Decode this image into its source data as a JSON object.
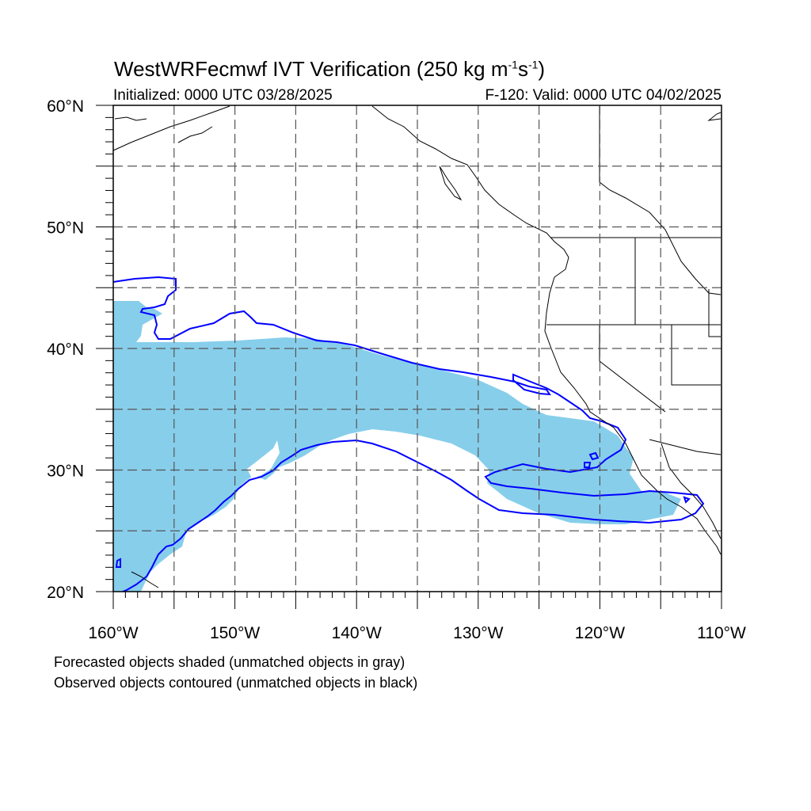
{
  "title": {
    "model": "WestWRFecmwf",
    "rest": " IVT Verification (250 kg m",
    "exp1": "-1",
    "mid": "s",
    "exp2": "-1",
    "close": ")"
  },
  "initialized": "Initialized: 0000 UTC 03/28/2025",
  "valid": "F-120: Valid: 0000 UTC 04/02/2025",
  "notes": [
    "Forecasted objects shaded (unmatched objects in gray)",
    "Observed objects contoured (unmatched objects in black)"
  ],
  "map": {
    "lon_range": [
      -160,
      -110
    ],
    "lat_range": [
      20,
      60
    ],
    "lon_ticks": [
      "160°W",
      "150°W",
      "140°W",
      "130°W",
      "120°W",
      "110°W"
    ],
    "lat_ticks": [
      "20°N",
      "30°N",
      "40°N",
      "50°N",
      "60°N"
    ],
    "gridlines": "dashed every 5°",
    "colors": {
      "forecast_shading": "#87ceeb",
      "observed_contour": "#0000ff",
      "coastline": "#000000",
      "grid": "#555555"
    }
  }
}
